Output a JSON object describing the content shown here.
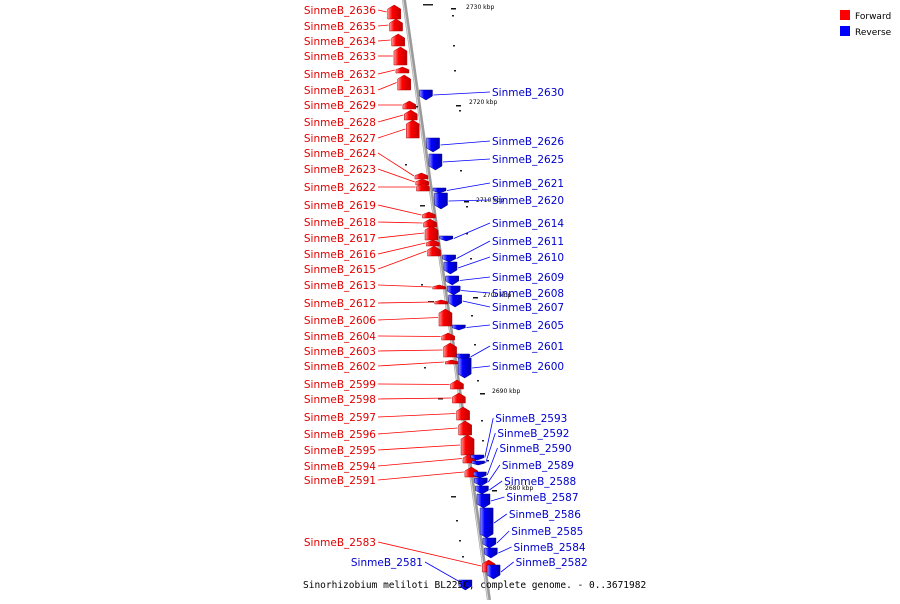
{
  "legend": {
    "forward_label": "Forward",
    "reverse_label": "Reverse",
    "forward_color": "#ff0000",
    "reverse_color": "#0000ff"
  },
  "caption": "Sinorhizobium meliloti BL225C, complete genome. - 0..3671982",
  "kbp_ticks": [
    "2730 kbp",
    "2720 kbp",
    "2710 kbp",
    "2700 kbp",
    "2690 kbp",
    "2680 kbp"
  ],
  "forward_genes": [
    "SinmeB_2636",
    "SinmeB_2635",
    "SinmeB_2634",
    "SinmeB_2633",
    "SinmeB_2632",
    "SinmeB_2631",
    "SinmeB_2629",
    "SinmeB_2628",
    "SinmeB_2627",
    "SinmeB_2624",
    "SinmeB_2623",
    "SinmeB_2622",
    "SinmeB_2619",
    "SinmeB_2618",
    "SinmeB_2617",
    "SinmeB_2616",
    "SinmeB_2615",
    "SinmeB_2613",
    "SinmeB_2612",
    "SinmeB_2606",
    "SinmeB_2604",
    "SinmeB_2603",
    "SinmeB_2602",
    "SinmeB_2599",
    "SinmeB_2598",
    "SinmeB_2597",
    "SinmeB_2596",
    "SinmeB_2595",
    "SinmeB_2594",
    "SinmeB_2591",
    "SinmeB_2583"
  ],
  "reverse_genes": [
    "SinmeB_2630",
    "SinmeB_2626",
    "SinmeB_2625",
    "SinmeB_2621",
    "SinmeB_2620",
    "SinmeB_2614",
    "SinmeB_2611",
    "SinmeB_2610",
    "SinmeB_2609",
    "SinmeB_2608",
    "SinmeB_2607",
    "SinmeB_2605",
    "SinmeB_2601",
    "SinmeB_2600",
    "SinmeB_2593",
    "SinmeB_2592",
    "SinmeB_2590",
    "SinmeB_2589",
    "SinmeB_2588",
    "SinmeB_2587",
    "SinmeB_2586",
    "SinmeB_2585",
    "SinmeB_2584",
    "SinmeB_2582",
    "SinmeB_2581"
  ]
}
